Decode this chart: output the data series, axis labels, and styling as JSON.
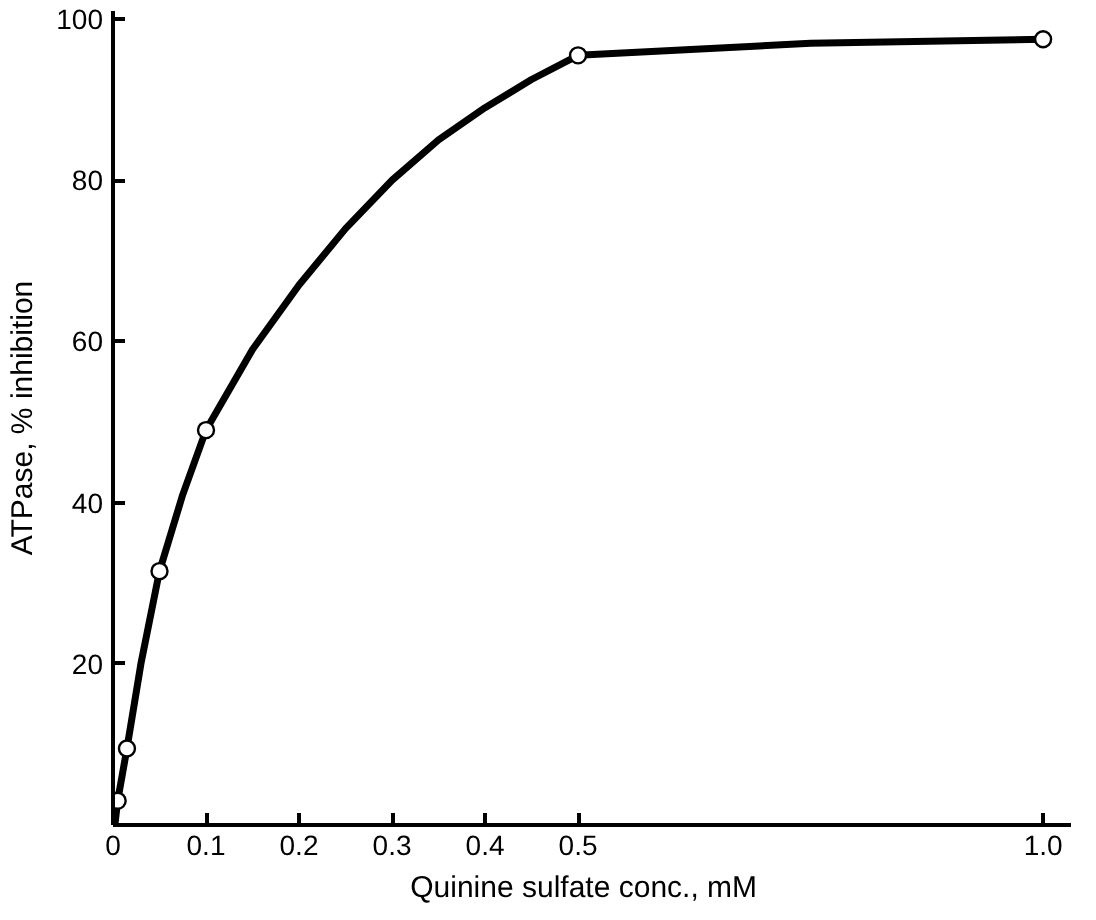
{
  "chart_data": {
    "type": "scatter",
    "xlabel": "Quinine sulfate conc.,   mM",
    "ylabel": "ATPase, % inhibition",
    "series": [
      {
        "type": "line",
        "color": "#000000",
        "marker": "none",
        "x": [
          0.002,
          0.005,
          0.015,
          0.03,
          0.05,
          0.075,
          0.1,
          0.15,
          0.2,
          0.25,
          0.3,
          0.35,
          0.4,
          0.45,
          0.5,
          0.75,
          1.0
        ],
        "values": [
          0,
          3,
          9.5,
          20,
          31.5,
          41,
          49,
          59,
          67,
          74,
          80,
          85,
          89,
          92.5,
          95.5,
          97,
          97.5
        ]
      },
      {
        "color": "#000000",
        "marker": "circle",
        "x": [
          0.005,
          0.015,
          0.05,
          0.1,
          0.5,
          1.0
        ],
        "values": [
          3,
          9.5,
          31.5,
          49,
          95.5,
          97.5
        ]
      }
    ],
    "line_style": "solid",
    "grid": false,
    "xlim": [
      0,
      1.03
    ],
    "xticks": [
      0,
      0.1,
      0.2,
      0.3,
      0.4,
      0.5,
      {
        "value": 1.0,
        "label": "1.0"
      }
    ],
    "ylim": [
      0,
      101
    ],
    "yticks": [
      {
        "value": 0,
        "label": null
      },
      20,
      40,
      60,
      80,
      100
    ]
  }
}
